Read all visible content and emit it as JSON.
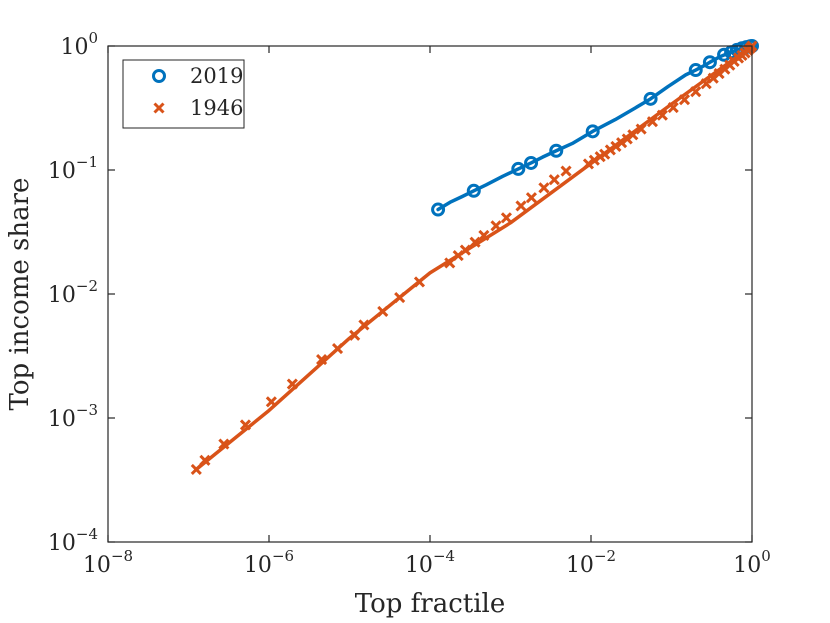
{
  "chart_data": {
    "type": "line",
    "xscale": "log",
    "yscale": "log",
    "xlabel": "Top fractile",
    "ylabel": "Top income share",
    "xlim": [
      1e-08,
      1
    ],
    "ylim": [
      0.0001,
      1
    ],
    "xticks": [
      {
        "base": "10",
        "exp": "−8",
        "value": 1e-08
      },
      {
        "base": "10",
        "exp": "−6",
        "value": 1e-06
      },
      {
        "base": "10",
        "exp": "−4",
        "value": 0.0001
      },
      {
        "base": "10",
        "exp": "−2",
        "value": 0.01
      },
      {
        "base": "10",
        "exp": "0",
        "value": 1
      }
    ],
    "yticks": [
      {
        "base": "10",
        "exp": "−4",
        "value": 0.0001
      },
      {
        "base": "10",
        "exp": "−3",
        "value": 0.001
      },
      {
        "base": "10",
        "exp": "−2",
        "value": 0.01
      },
      {
        "base": "10",
        "exp": "−1",
        "value": 0.1
      },
      {
        "base": "10",
        "exp": "0",
        "value": 1
      }
    ],
    "legend_position": "top-left",
    "series": [
      {
        "name": "2019",
        "color": "#0072BD",
        "marker": "circle",
        "curve_x": [
          0.000126,
          0.000178,
          0.00025,
          0.00035,
          0.0005,
          0.0008,
          0.00125,
          0.0018,
          0.0025,
          0.0037,
          0.006,
          0.0105,
          0.02,
          0.035,
          0.055,
          0.09,
          0.15,
          0.2,
          0.25,
          0.3,
          0.4,
          0.5,
          0.6,
          0.7,
          0.8,
          0.9,
          1.0
        ],
        "curve_y": [
          0.048,
          0.055,
          0.061,
          0.068,
          0.076,
          0.089,
          0.102,
          0.114,
          0.127,
          0.143,
          0.165,
          0.205,
          0.255,
          0.315,
          0.375,
          0.47,
          0.585,
          0.64,
          0.69,
          0.74,
          0.82,
          0.87,
          0.91,
          0.945,
          0.97,
          0.99,
          1.0
        ],
        "marker_x": [
          0.000126,
          0.00035,
          0.00125,
          0.0018,
          0.0037,
          0.0105,
          0.055,
          0.2,
          0.3,
          0.45,
          0.55,
          0.65,
          0.75,
          0.85,
          0.95,
          1.0
        ],
        "marker_y": [
          0.048,
          0.068,
          0.102,
          0.114,
          0.143,
          0.205,
          0.375,
          0.64,
          0.74,
          0.85,
          0.89,
          0.93,
          0.96,
          0.98,
          0.995,
          1.0
        ]
      },
      {
        "name": "1946",
        "color": "#D95319",
        "marker": "x",
        "curve_x": [
          1.25e-07,
          1e-06,
          1e-05,
          0.0001,
          0.001,
          0.01,
          0.1,
          1.0
        ],
        "curve_y": [
          0.000385,
          0.00115,
          0.0044,
          0.0148,
          0.0375,
          0.113,
          0.34,
          1.0
        ],
        "marker_x": [
          1.25e-07,
          1.6e-07,
          2.75e-07,
          5.1e-07,
          1.07e-06,
          1.95e-06,
          4.5e-06,
          7.1e-06,
          1.16e-05,
          1.51e-05,
          2.59e-05,
          4.2e-05,
          7.4e-05,
          0.000176,
          0.000224,
          0.000275,
          0.000363,
          0.000467,
          0.000661,
          0.00089,
          0.00135,
          0.00182,
          0.0026,
          0.0035,
          0.0049,
          0.0093,
          0.011,
          0.013,
          0.0148,
          0.0174,
          0.0204,
          0.024,
          0.0282,
          0.0331,
          0.042,
          0.058,
          0.077,
          0.105,
          0.145,
          0.2,
          0.27,
          0.33,
          0.39,
          0.46,
          0.53,
          0.6,
          0.68,
          0.75,
          0.82,
          0.89,
          0.95,
          1.0
        ],
        "marker_y": [
          0.000385,
          0.000456,
          0.000616,
          0.00088,
          0.00135,
          0.00188,
          0.00296,
          0.00363,
          0.00464,
          0.00563,
          0.00723,
          0.00935,
          0.0125,
          0.0178,
          0.0204,
          0.0226,
          0.0262,
          0.0297,
          0.0355,
          0.0412,
          0.0513,
          0.0598,
          0.0718,
          0.0835,
          0.098,
          0.112,
          0.12,
          0.128,
          0.134,
          0.145,
          0.155,
          0.166,
          0.178,
          0.192,
          0.214,
          0.245,
          0.277,
          0.319,
          0.369,
          0.428,
          0.497,
          0.55,
          0.6,
          0.65,
          0.7,
          0.75,
          0.8,
          0.84,
          0.88,
          0.92,
          0.96,
          1.0
        ]
      }
    ]
  }
}
